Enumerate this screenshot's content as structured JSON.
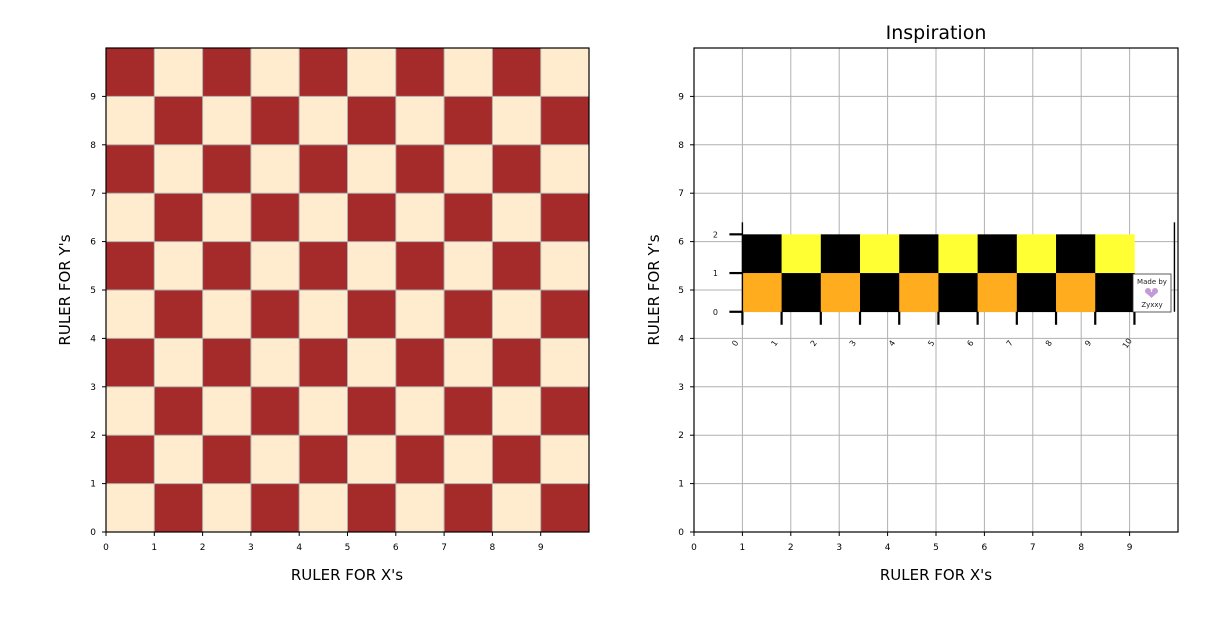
{
  "figure": {
    "left_panel": {
      "title": "",
      "xlabel": "RULER FOR X's",
      "ylabel": "RULER FOR Y's",
      "x_ticks": [
        "0",
        "1",
        "2",
        "3",
        "4",
        "5",
        "6",
        "7",
        "8",
        "9"
      ],
      "y_ticks": [
        "0",
        "1",
        "2",
        "3",
        "4",
        "5",
        "6",
        "7",
        "8",
        "9"
      ]
    },
    "right_panel": {
      "title": "Inspiration",
      "xlabel": "RULER FOR X's",
      "ylabel": "RULER FOR Y's",
      "x_ticks": [
        "0",
        "1",
        "2",
        "3",
        "4",
        "5",
        "6",
        "7",
        "8",
        "9"
      ],
      "y_ticks": [
        "0",
        "1",
        "2",
        "3",
        "4",
        "5",
        "6",
        "7",
        "8",
        "9"
      ],
      "inset": {
        "row_labels": [
          "2",
          "1",
          "0"
        ],
        "col_labels": [
          "0",
          "1",
          "2",
          "3",
          "4",
          "5",
          "6",
          "7",
          "8",
          "9",
          "10"
        ],
        "badge_line1": "Made by",
        "badge_line2": "Zyxxy"
      }
    }
  },
  "colors": {
    "dark_square": "#a52a2a",
    "light_square": "#ffebcd",
    "yellow": "#ffff33",
    "orange": "#ffad1f",
    "black": "#000000",
    "grid": "#b0b0b0",
    "badge_accent": "#c49ad6"
  },
  "chart_data": [
    {
      "type": "heatmap",
      "title": "",
      "xlabel": "RULER FOR X's",
      "ylabel": "RULER FOR Y's",
      "xlim": [
        0,
        10
      ],
      "ylim": [
        0,
        10
      ],
      "grid": true,
      "description_of_cells": "10x10 checkerboard; value 1 = brown, 0 = cream; cell (col 0,row 0) is cream",
      "rows_bottom_to_top": [
        [
          0,
          1,
          0,
          1,
          0,
          1,
          0,
          1,
          0,
          1
        ],
        [
          1,
          0,
          1,
          0,
          1,
          0,
          1,
          0,
          1,
          0
        ],
        [
          0,
          1,
          0,
          1,
          0,
          1,
          0,
          1,
          0,
          1
        ],
        [
          1,
          0,
          1,
          0,
          1,
          0,
          1,
          0,
          1,
          0
        ],
        [
          0,
          1,
          0,
          1,
          0,
          1,
          0,
          1,
          0,
          1
        ],
        [
          1,
          0,
          1,
          0,
          1,
          0,
          1,
          0,
          1,
          0
        ],
        [
          0,
          1,
          0,
          1,
          0,
          1,
          0,
          1,
          0,
          1
        ],
        [
          1,
          0,
          1,
          0,
          1,
          0,
          1,
          0,
          1,
          0
        ],
        [
          0,
          1,
          0,
          1,
          0,
          1,
          0,
          1,
          0,
          1
        ],
        [
          1,
          0,
          1,
          0,
          1,
          0,
          1,
          0,
          1,
          0
        ]
      ]
    },
    {
      "type": "heatmap",
      "title": "Inspiration",
      "xlabel": "RULER FOR X's",
      "ylabel": "RULER FOR Y's",
      "xlim": [
        0,
        10
      ],
      "ylim": [
        0,
        10
      ],
      "grid": true,
      "inset_extent": {
        "x": [
          1,
          9.1
        ],
        "y": [
          4.55,
          6.15
        ]
      },
      "inset_rows_top_to_bottom": [
        [
          "black",
          "yellow",
          "black",
          "yellow",
          "black",
          "yellow",
          "black",
          "yellow",
          "black",
          "yellow"
        ],
        [
          "orange",
          "black",
          "orange",
          "black",
          "orange",
          "black",
          "orange",
          "black",
          "orange",
          "black"
        ]
      ]
    }
  ]
}
